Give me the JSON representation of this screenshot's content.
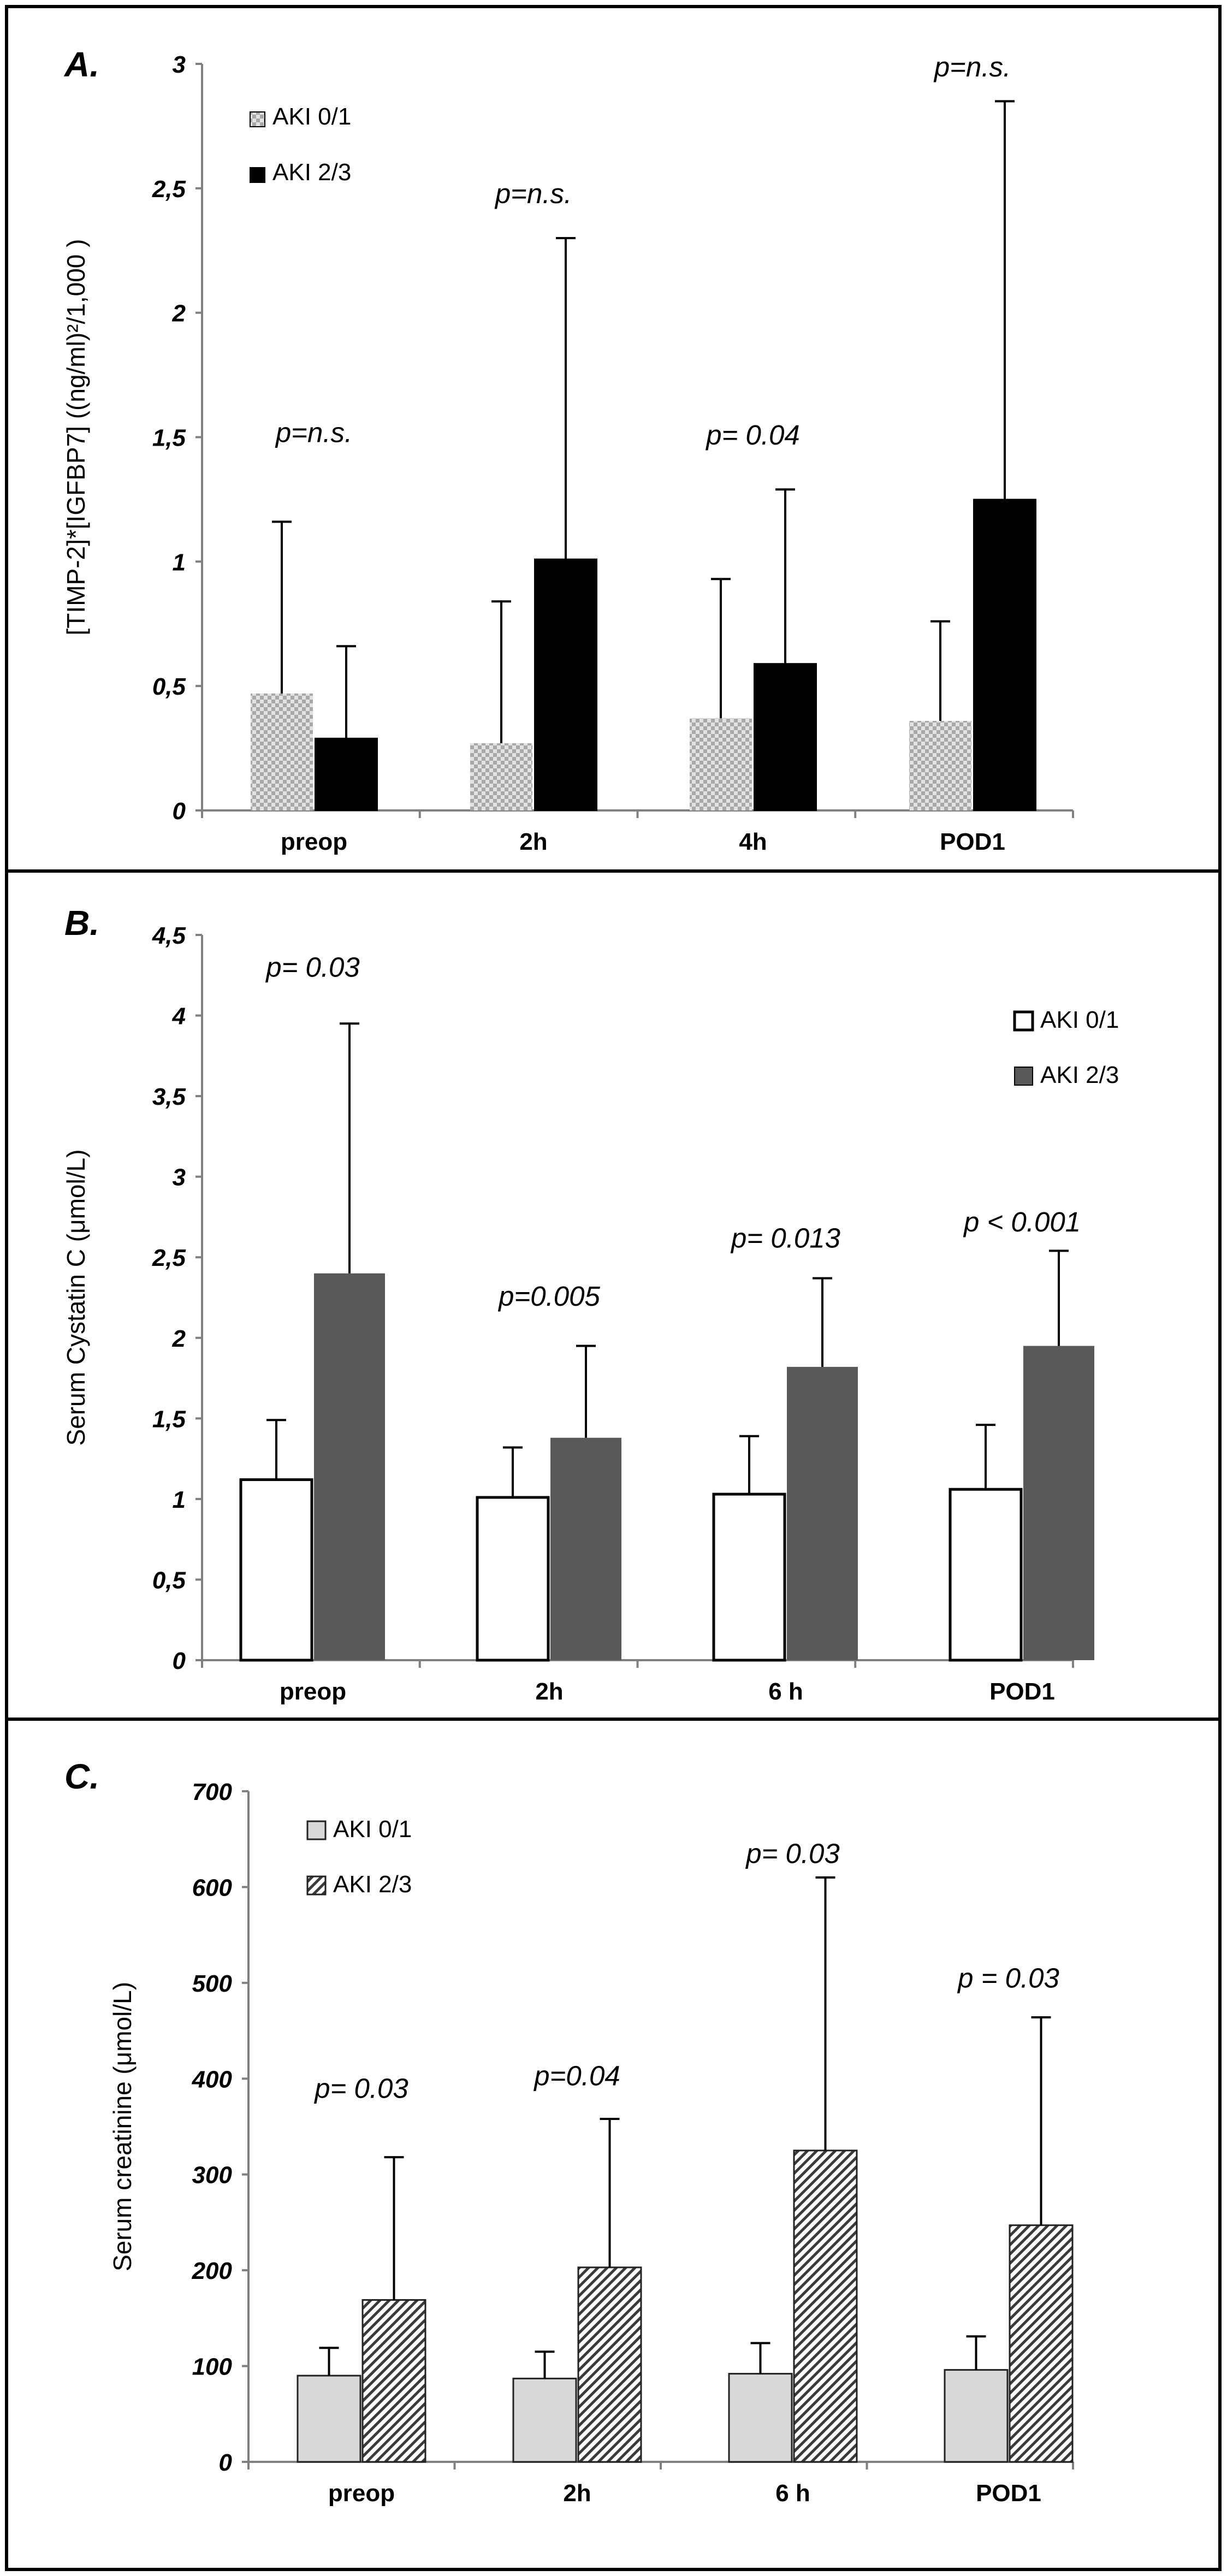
{
  "chart_data": [
    {
      "panel_label": "A.",
      "type": "bar",
      "ylabel": "[TIMP-2]*[IGFBP7] ((ng/ml)²/1,000 )",
      "ylim": [
        0,
        3
      ],
      "yticks": [
        "0",
        "0,5",
        "1",
        "1,5",
        "2",
        "2,5",
        "3"
      ],
      "categories": [
        "preop",
        "2h",
        "4h",
        "POD1"
      ],
      "legend_position": "top-left",
      "series": [
        {
          "name": "AKI 0/1",
          "style": "checker",
          "values": [
            0.47,
            0.27,
            0.37,
            0.36
          ],
          "errors": [
            0.69,
            0.57,
            0.56,
            0.4
          ]
        },
        {
          "name": "AKI 2/3",
          "style": "black",
          "values": [
            0.29,
            1.01,
            0.59,
            1.25
          ],
          "errors": [
            0.37,
            1.29,
            0.7,
            1.6
          ]
        }
      ],
      "annotations": [
        "p=n.s.",
        "p=n.s.",
        "p= 0.04",
        "p=n.s."
      ],
      "annotation_y": [
        1.48,
        2.44,
        1.47,
        2.95
      ]
    },
    {
      "panel_label": "B.",
      "type": "bar",
      "ylabel": "Serum Cystatin C (μmol/L)",
      "ylim": [
        0,
        4.5
      ],
      "yticks": [
        "0",
        "0,5",
        "1",
        "1,5",
        "2",
        "2,5",
        "3",
        "3,5",
        "4",
        "4,5"
      ],
      "categories": [
        "preop",
        "2h",
        "6 h",
        "POD1"
      ],
      "legend_position": "top-right",
      "series": [
        {
          "name": "AKI 0/1",
          "style": "white",
          "values": [
            1.12,
            1.01,
            1.03,
            1.06
          ],
          "errors": [
            0.37,
            0.31,
            0.36,
            0.4
          ]
        },
        {
          "name": "AKI 2/3",
          "style": "gray",
          "values": [
            2.4,
            1.38,
            1.82,
            1.95
          ],
          "errors": [
            1.55,
            0.57,
            0.55,
            0.59
          ]
        }
      ],
      "annotations": [
        "p= 0.03",
        "p=0.005",
        "p= 0.013",
        "p < 0.001"
      ],
      "annotation_y": [
        4.24,
        2.2,
        2.56,
        2.66
      ]
    },
    {
      "panel_label": "C.",
      "type": "bar",
      "ylabel": "Serum creatinine (μmol/L)",
      "ylim": [
        0,
        700
      ],
      "yticks": [
        "0",
        "100",
        "200",
        "300",
        "400",
        "500",
        "600",
        "700"
      ],
      "categories": [
        "preop",
        "2h",
        "6 h",
        "POD1"
      ],
      "legend_position": "top-left",
      "series": [
        {
          "name": "AKI 0/1",
          "style": "light",
          "values": [
            90,
            87,
            92,
            96
          ],
          "errors": [
            29,
            28,
            32,
            35
          ]
        },
        {
          "name": "AKI 2/3",
          "style": "hatch",
          "values": [
            169,
            203,
            325,
            247
          ],
          "errors": [
            149,
            155,
            285,
            217
          ]
        }
      ],
      "annotations": [
        "p= 0.03",
        "p=0.04",
        "p= 0.03",
        "p = 0.03"
      ],
      "annotation_y": [
        380,
        393,
        625,
        495
      ]
    }
  ]
}
